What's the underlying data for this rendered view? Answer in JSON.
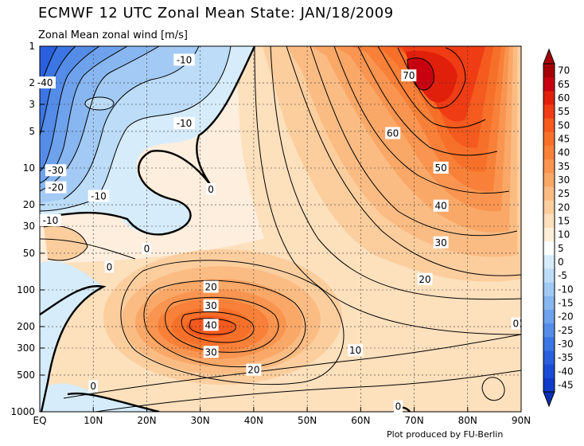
{
  "title": "ECMWF 12 UTC Zonal Mean State: JAN/18/2009",
  "subtitle": "Zonal Mean zonal wind [m/s]",
  "credit": "Plot produced by FU-Berlin",
  "chart_data": {
    "type": "heatmap",
    "title": "ECMWF 12 UTC Zonal Mean State: JAN/18/2009",
    "quantity": "Zonal Mean zonal wind [m/s]",
    "x_ticks": [
      "EQ",
      "10N",
      "20N",
      "30N",
      "40N",
      "50N",
      "60N",
      "70N",
      "80N",
      "90N"
    ],
    "x_values": [
      0,
      10,
      20,
      30,
      40,
      50,
      60,
      70,
      80,
      90
    ],
    "xlim": [
      0,
      90
    ],
    "y_ticks": [
      "1",
      "2",
      "3",
      "5",
      "10",
      "20",
      "30",
      "50",
      "100",
      "200",
      "300",
      "500",
      "1000"
    ],
    "y_values": [
      1,
      2,
      3,
      5,
      10,
      20,
      30,
      50,
      100,
      200,
      300,
      500,
      1000
    ],
    "ylim": [
      1000,
      1
    ],
    "y_scale": "log",
    "grid": true,
    "colorbar": {
      "levels": [
        70,
        65,
        60,
        55,
        50,
        45,
        40,
        35,
        30,
        25,
        20,
        15,
        10,
        5,
        0,
        -5,
        -10,
        -15,
        -20,
        -25,
        -30,
        -35,
        -40,
        -45
      ],
      "colors": [
        "#a50008",
        "#c80010",
        "#e1200c",
        "#f03c14",
        "#f55a1e",
        "#f7702a",
        "#f88038",
        "#f99550",
        "#faa868",
        "#fbbc84",
        "#fcce9e",
        "#fde0bc",
        "#feefd8",
        "#ffffff",
        "#d6ecfb",
        "#bcdcf7",
        "#a2caf4",
        "#88b6f0",
        "#6ea2ec",
        "#548ce8",
        "#3c76e4",
        "#2a60dd",
        "#1a4cd6",
        "#0f3cc8"
      ]
    },
    "contour_labels": [
      {
        "value": "-10",
        "lat": 27,
        "p": 1.3
      },
      {
        "value": "-10",
        "lat": 27,
        "p": 4.3
      },
      {
        "value": "-40",
        "lat": 1,
        "p": 2.0
      },
      {
        "value": "-30",
        "lat": 3,
        "p": 10.5
      },
      {
        "value": "-20",
        "lat": 3,
        "p": 14.5
      },
      {
        "value": "-10",
        "lat": 11,
        "p": 17.0
      },
      {
        "value": "-10",
        "lat": 2,
        "p": 27.0
      },
      {
        "value": "0",
        "lat": 32,
        "p": 15.0
      },
      {
        "value": "0",
        "lat": 20,
        "p": 46.0
      },
      {
        "value": "0",
        "lat": 13,
        "p": 65.0
      },
      {
        "value": "0",
        "lat": 10,
        "p": 620.0
      },
      {
        "value": "70",
        "lat": 69,
        "p": 1.75
      },
      {
        "value": "60",
        "lat": 66,
        "p": 5.2
      },
      {
        "value": "50",
        "lat": 75,
        "p": 10.0
      },
      {
        "value": "40",
        "lat": 75,
        "p": 20.5
      },
      {
        "value": "30",
        "lat": 75,
        "p": 41.0
      },
      {
        "value": "20",
        "lat": 72,
        "p": 82.0
      },
      {
        "value": "20",
        "lat": 32,
        "p": 95.0
      },
      {
        "value": "30",
        "lat": 32,
        "p": 135.0
      },
      {
        "value": "40",
        "lat": 32,
        "p": 195.0
      },
      {
        "value": "30",
        "lat": 32,
        "p": 325.0
      },
      {
        "value": "20",
        "lat": 40,
        "p": 455.0
      },
      {
        "value": "10",
        "lat": 59,
        "p": 315.0
      },
      {
        "value": "0",
        "lat": 67,
        "p": 910.0
      },
      {
        "value": "0",
        "lat": 89,
        "p": 190.0
      }
    ]
  }
}
